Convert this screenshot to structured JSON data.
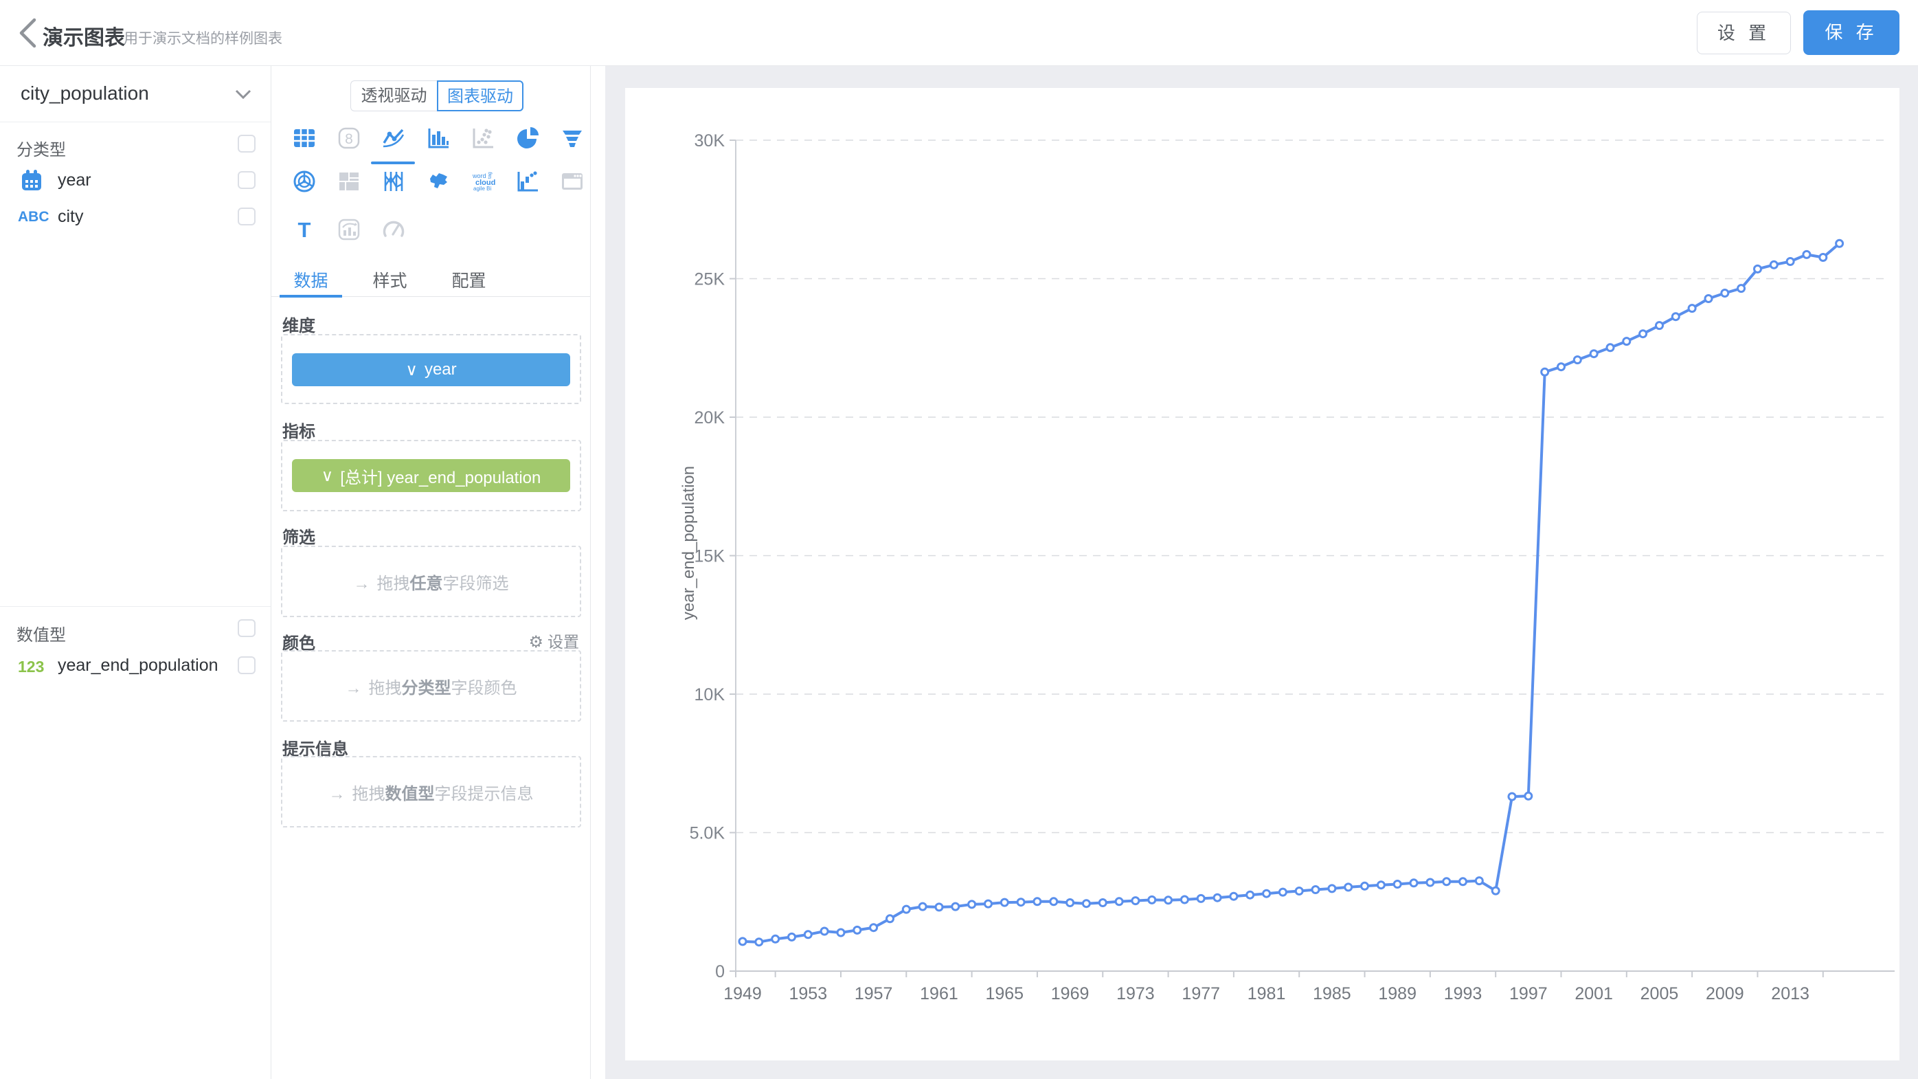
{
  "header": {
    "title": "演示图表",
    "subtitle": "用于演示文档的样例图表",
    "settings_label": "设 置",
    "save_label": "保 存"
  },
  "icons": {
    "back": "‹",
    "chevron_down": "∨",
    "arrow_right": "→",
    "gear": "⚙"
  },
  "sidebar": {
    "dataset": "city_population",
    "categorical_section": {
      "label": "分类型",
      "fields": [
        {
          "name": "year",
          "type": "date",
          "icon": "calendar-icon"
        },
        {
          "name": "city",
          "type": "text",
          "badge": "ABC"
        }
      ]
    },
    "numeric_section": {
      "label": "数值型",
      "fields": [
        {
          "name": "year_end_population",
          "badge": "123"
        }
      ]
    }
  },
  "builder": {
    "mode_tabs": {
      "pivot": "透视驱动",
      "chart": "图表驱动",
      "selected": "chart"
    },
    "chart_type_picker": {
      "selected": "line",
      "types": [
        {
          "name": "table",
          "enabled": true
        },
        {
          "name": "indicator-card",
          "enabled": false
        },
        {
          "name": "line",
          "enabled": true
        },
        {
          "name": "bar",
          "enabled": true
        },
        {
          "name": "scatter",
          "enabled": false
        },
        {
          "name": "pie",
          "enabled": true
        },
        {
          "name": "funnel",
          "enabled": true
        },
        {
          "name": "radar",
          "enabled": true
        },
        {
          "name": "treemap",
          "enabled": false
        },
        {
          "name": "parallel",
          "enabled": true
        },
        {
          "name": "china-map",
          "enabled": true
        },
        {
          "name": "word-cloud",
          "enabled": true
        },
        {
          "name": "waterfall",
          "enabled": true
        },
        {
          "name": "web-frame",
          "enabled": false
        },
        {
          "name": "text",
          "enabled": true
        },
        {
          "name": "mix-chart",
          "enabled": false
        },
        {
          "name": "gauge",
          "enabled": false
        }
      ]
    },
    "tabs": {
      "data": "数据",
      "style": "样式",
      "config": "配置",
      "active": "data"
    },
    "sections": {
      "dimension": {
        "label": "维度",
        "chip": "year"
      },
      "measure": {
        "label": "指标",
        "chip": "[总计] year_end_population"
      },
      "filter": {
        "label": "筛选",
        "hint_prefix": "拖拽",
        "hint_bold": "任意",
        "hint_suffix": "字段筛选"
      },
      "color": {
        "label": "颜色",
        "action": "设置",
        "hint_prefix": "拖拽",
        "hint_bold": "分类型",
        "hint_suffix": "字段颜色"
      },
      "tooltip": {
        "label": "提示信息",
        "hint_prefix": "拖拽",
        "hint_bold": "数值型",
        "hint_suffix": "字段提示信息"
      }
    }
  },
  "chart_data": {
    "type": "line",
    "title": "",
    "xlabel": "",
    "ylabel": "year_end_population",
    "legend": "none",
    "grid": "horizontal-dashed",
    "line_color": "#5a8fec",
    "marker": "open-circle",
    "ylim": [
      0,
      30000
    ],
    "y_tick_values": [
      0,
      5000,
      10000,
      15000,
      20000,
      25000,
      30000
    ],
    "y_tick_labels": [
      "0",
      "5.0K",
      "10K",
      "15K",
      "20K",
      "25K",
      "30K"
    ],
    "x_tick_labels": [
      "1949",
      "1953",
      "1957",
      "1961",
      "1965",
      "1969",
      "1973",
      "1977",
      "1981",
      "1985",
      "1989",
      "1993",
      "1997",
      "2001",
      "2005",
      "2009",
      "2013"
    ],
    "x": [
      1949,
      1950,
      1951,
      1952,
      1953,
      1954,
      1955,
      1956,
      1957,
      1958,
      1959,
      1960,
      1961,
      1962,
      1963,
      1964,
      1965,
      1966,
      1967,
      1968,
      1969,
      1970,
      1971,
      1972,
      1973,
      1974,
      1975,
      1976,
      1977,
      1978,
      1979,
      1980,
      1981,
      1982,
      1983,
      1984,
      1985,
      1986,
      1987,
      1988,
      1989,
      1990,
      1991,
      1992,
      1993,
      1994,
      1995,
      1996,
      1997,
      1998,
      1999,
      2000,
      2001,
      2002,
      2003,
      2004,
      2005,
      2006,
      2007,
      2008,
      2009,
      2010,
      2011,
      2012,
      2013,
      2014,
      2015,
      2016
    ],
    "values": [
      1070,
      1050,
      1160,
      1230,
      1320,
      1440,
      1390,
      1480,
      1570,
      1890,
      2230,
      2330,
      2310,
      2330,
      2410,
      2430,
      2480,
      2490,
      2510,
      2510,
      2470,
      2440,
      2470,
      2510,
      2540,
      2570,
      2560,
      2580,
      2620,
      2650,
      2700,
      2750,
      2800,
      2850,
      2890,
      2940,
      2980,
      3030,
      3070,
      3110,
      3140,
      3180,
      3200,
      3230,
      3230,
      3260,
      2900,
      6300,
      6320,
      21630,
      21820,
      22070,
      22290,
      22510,
      22740,
      23010,
      23310,
      23630,
      23930,
      24280,
      24480,
      24650,
      25350,
      25500,
      25620,
      25870,
      25770,
      26270
    ]
  }
}
